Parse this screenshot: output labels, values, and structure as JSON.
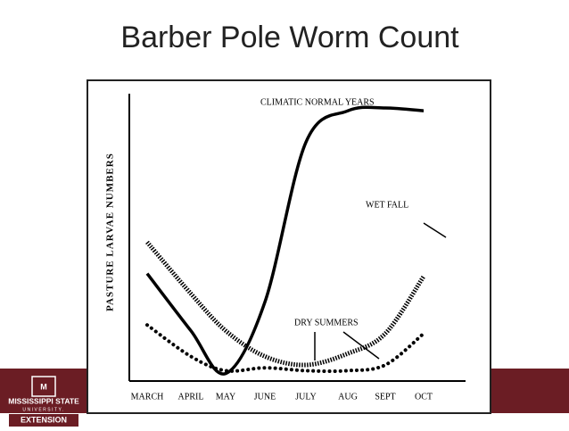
{
  "title": "Barber Pole Worm Count",
  "chart_data": {
    "type": "line",
    "y_label": "PASTURE LARVAE NUMBERS",
    "categories": [
      "MARCH",
      "APRIL",
      "MAY",
      "JUNE",
      "JULY",
      "AUG",
      "SEPT",
      "OCT"
    ],
    "ylim": [
      0,
      100
    ],
    "series": [
      {
        "name": "CLIMATIC NORMAL YEARS",
        "color": "#000000",
        "style": "solid",
        "values": [
          37,
          17,
          2,
          27,
          83,
          94,
          95,
          94
        ]
      },
      {
        "name": "WET FALL",
        "color": "#000000",
        "style": "striped",
        "values": [
          48,
          30,
          17,
          8,
          5,
          9,
          16,
          36
        ]
      },
      {
        "name": "DRY SUMMERS",
        "color": "#000000",
        "style": "dotted",
        "values": [
          19,
          8,
          3,
          4,
          3,
          3,
          5,
          16
        ]
      }
    ]
  },
  "footer": {
    "line1": "MISSISSIPPI STATE",
    "line2": "UNIVERSITY.",
    "line3": "EXTENSION"
  }
}
